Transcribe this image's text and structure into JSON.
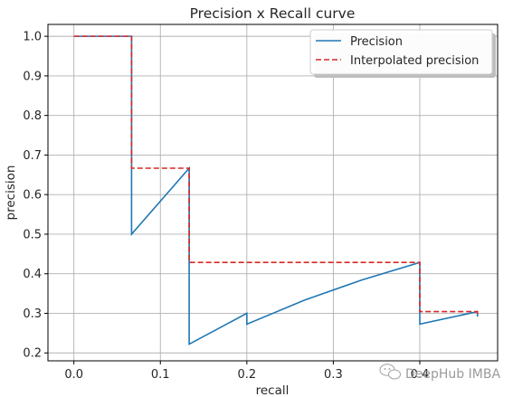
{
  "chart_data": {
    "type": "line",
    "title": "Precision x Recall curve",
    "xlabel": "recall",
    "ylabel": "precision",
    "xlim": [
      -0.03,
      0.49
    ],
    "ylim": [
      0.18,
      1.03
    ],
    "xticks": [
      0.0,
      0.1,
      0.2,
      0.3,
      0.4
    ],
    "xtick_labels": [
      "0.0",
      "0.1",
      "0.2",
      "0.3",
      "0.4"
    ],
    "yticks": [
      0.2,
      0.3,
      0.4,
      0.5,
      0.6,
      0.7,
      0.8,
      0.9,
      1.0
    ],
    "ytick_labels": [
      "0.2",
      "0.3",
      "0.4",
      "0.5",
      "0.6",
      "0.7",
      "0.8",
      "0.9",
      "1.0"
    ],
    "grid": true,
    "legend_position": "top-right",
    "series": [
      {
        "name": "Precision",
        "color": "#1f77b4",
        "dash": "solid",
        "x": [
          0.0,
          0.0667,
          0.0667,
          0.0667,
          0.1333,
          0.1333,
          0.2,
          0.2,
          0.2667,
          0.3333,
          0.4,
          0.4,
          0.4667,
          0.4667
        ],
        "y": [
          1.0,
          1.0,
          0.6667,
          0.5,
          0.6667,
          0.2222,
          0.3,
          0.2727,
          0.3333,
          0.3846,
          0.4286,
          0.2727,
          0.3043,
          0.2917
        ]
      },
      {
        "name": "Interpolated precision",
        "color": "#d62728",
        "dash": "dashed",
        "x": [
          0.0,
          0.0667,
          0.0667,
          0.1333,
          0.1333,
          0.4,
          0.4,
          0.4667,
          0.4667
        ],
        "y": [
          1.0,
          1.0,
          0.6667,
          0.6667,
          0.4286,
          0.4286,
          0.3043,
          0.3043,
          0.2917
        ]
      }
    ]
  },
  "watermark": {
    "text": "DeepHub IMBA",
    "icon": "wechat-icon"
  }
}
